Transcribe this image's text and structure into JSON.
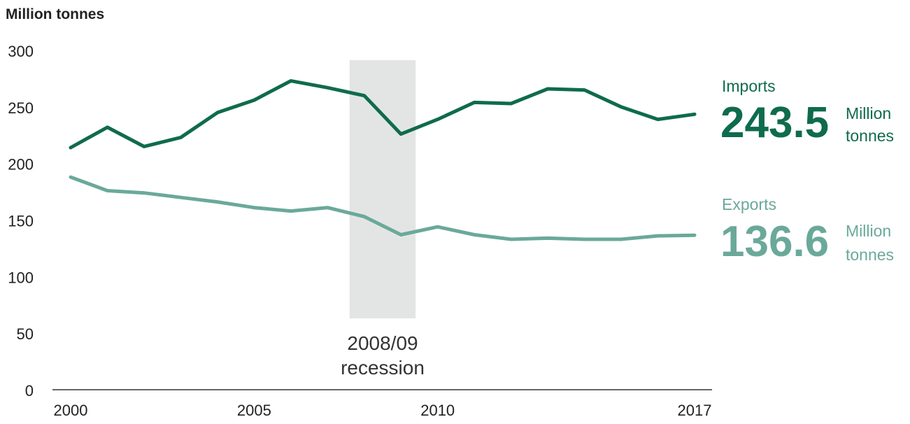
{
  "chart_data": {
    "type": "line",
    "ylabel": "Million tonnes",
    "ylim": [
      0,
      300
    ],
    "yticks": [
      0,
      50,
      100,
      150,
      200,
      250,
      300
    ],
    "xlim": [
      2000,
      2017
    ],
    "xticks": [
      2000,
      2005,
      2010,
      2017
    ],
    "grid": false,
    "x": [
      2000,
      2001,
      2002,
      2003,
      2004,
      2005,
      2006,
      2007,
      2008,
      2009,
      2010,
      2011,
      2012,
      2013,
      2014,
      2015,
      2016,
      2017
    ],
    "series": [
      {
        "name": "Imports",
        "color": "#0f6b4e",
        "values": [
          214,
          232,
          215,
          223,
          245,
          256,
          273,
          267,
          260,
          226,
          239,
          254,
          253,
          266,
          265,
          250,
          239,
          243.5
        ],
        "latest_value": "243.5",
        "unit_line1": "Million",
        "unit_line2": "tonnes"
      },
      {
        "name": "Exports",
        "color": "#6aa99a",
        "values": [
          188,
          176,
          174,
          170,
          166,
          161,
          158,
          161,
          153,
          137,
          144,
          137,
          133,
          134,
          133,
          133,
          136,
          136.6
        ],
        "latest_value": "136.6",
        "unit_line1": "Million",
        "unit_line2": "tonnes"
      }
    ],
    "annotations": [
      {
        "type": "shaded_band",
        "x_start": 2007.6,
        "x_end": 2009.4,
        "label_line1": "2008/09",
        "label_line2": "recession",
        "color": "#e3e5e4"
      }
    ],
    "legend": "right"
  }
}
